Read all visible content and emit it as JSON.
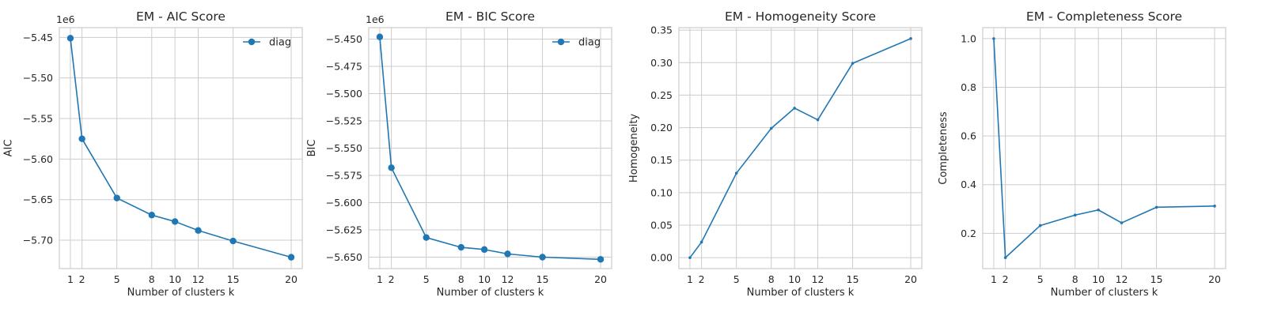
{
  "chart_data": [
    {
      "type": "line",
      "title": "EM - AIC Score",
      "xlabel": "Number of clusters k",
      "ylabel": "AIC",
      "scale_label": "1e6",
      "x": [
        1,
        2,
        5,
        8,
        10,
        12,
        15,
        20
      ],
      "xticks": [
        "1",
        "2",
        "5",
        "8",
        "10",
        "12",
        "15",
        "20"
      ],
      "xlim": [
        0.05,
        20.95
      ],
      "ylim": [
        -5.735,
        -5.438
      ],
      "yticks": [
        -5.7,
        -5.65,
        -5.6,
        -5.55,
        -5.5,
        -5.45
      ],
      "ytick_labels": [
        "−5.70",
        "−5.65",
        "−5.60",
        "−5.55",
        "−5.50",
        "−5.45"
      ],
      "marker": "large",
      "grid": true,
      "legend": "top-right",
      "color": "#1f77b4",
      "series": [
        {
          "name": "diag",
          "values": [
            -5.451,
            -5.575,
            -5.648,
            -5.669,
            -5.677,
            -5.688,
            -5.701,
            -5.721
          ]
        }
      ]
    },
    {
      "type": "line",
      "title": "EM - BIC Score",
      "xlabel": "Number of clusters k",
      "ylabel": "BIC",
      "scale_label": "1e6",
      "x": [
        1,
        2,
        5,
        8,
        10,
        12,
        15,
        20
      ],
      "xticks": [
        "1",
        "2",
        "5",
        "8",
        "10",
        "12",
        "15",
        "20"
      ],
      "xlim": [
        0.05,
        20.95
      ],
      "ylim": [
        -5.6605,
        -5.4395
      ],
      "yticks": [
        -5.65,
        -5.625,
        -5.6,
        -5.575,
        -5.55,
        -5.525,
        -5.5,
        -5.475,
        -5.45
      ],
      "ytick_labels": [
        "−5.650",
        "−5.625",
        "−5.600",
        "−5.575",
        "−5.550",
        "−5.525",
        "−5.500",
        "−5.475",
        "−5.450"
      ],
      "marker": "large",
      "grid": true,
      "legend": "top-right",
      "color": "#1f77b4",
      "series": [
        {
          "name": "diag",
          "values": [
            -5.448,
            -5.568,
            -5.632,
            -5.641,
            -5.643,
            -5.647,
            -5.65,
            -5.652
          ]
        }
      ]
    },
    {
      "type": "line",
      "title": "EM - Homogeneity Score",
      "xlabel": "Number of clusters k",
      "ylabel": "Homogeneity",
      "scale_label": "",
      "x": [
        1,
        2,
        5,
        8,
        10,
        12,
        15,
        20
      ],
      "xticks": [
        "1",
        "2",
        "5",
        "8",
        "10",
        "12",
        "15",
        "20"
      ],
      "xlim": [
        0.05,
        20.95
      ],
      "ylim": [
        -0.0168,
        0.3538
      ],
      "yticks": [
        0.0,
        0.05,
        0.1,
        0.15,
        0.2,
        0.25,
        0.3,
        0.35
      ],
      "ytick_labels": [
        "0.00",
        "0.05",
        "0.10",
        "0.15",
        "0.20",
        "0.25",
        "0.30",
        "0.35"
      ],
      "marker": "small",
      "grid": true,
      "legend": "",
      "color": "#1f77b4",
      "series": [
        {
          "values": [
            0.0,
            0.024,
            0.13,
            0.199,
            0.23,
            0.212,
            0.299,
            0.337
          ]
        }
      ]
    },
    {
      "type": "line",
      "title": "EM - Completeness Score",
      "xlabel": "Number of clusters k",
      "ylabel": "Completeness",
      "scale_label": "",
      "x": [
        1,
        2,
        5,
        8,
        10,
        12,
        15,
        20
      ],
      "xticks": [
        "1",
        "2",
        "5",
        "8",
        "10",
        "12",
        "15",
        "20"
      ],
      "xlim": [
        0.05,
        20.95
      ],
      "ylim": [
        0.055,
        1.045
      ],
      "yticks": [
        0.2,
        0.4,
        0.6,
        0.8,
        1.0
      ],
      "ytick_labels": [
        "0.2",
        "0.4",
        "0.6",
        "0.8",
        "1.0"
      ],
      "marker": "small",
      "grid": true,
      "legend": "",
      "color": "#1f77b4",
      "series": [
        {
          "values": [
            1.0,
            0.1,
            0.232,
            0.275,
            0.296,
            0.243,
            0.307,
            0.312
          ]
        }
      ]
    }
  ]
}
